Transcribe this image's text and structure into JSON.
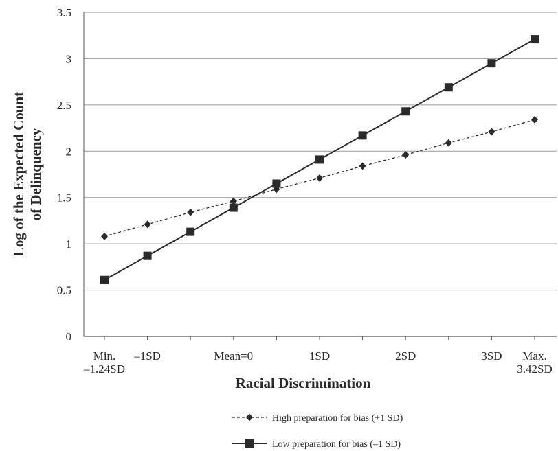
{
  "chart_data": {
    "type": "line",
    "title": "",
    "xlabel": "Racial Discrimination",
    "ylabel": "Log of the Expected Count of Delinquency",
    "ylabel_lines": [
      "Log of the Expected Count",
      "of Delinquency"
    ],
    "ylim": [
      0,
      3.5
    ],
    "yticks": [
      "0",
      "0.5",
      "1",
      "1.5",
      "2",
      "2.5",
      "3",
      "3.5"
    ],
    "grid": true,
    "legend_position": "bottom",
    "x_tick_labels": [
      {
        "idx": 0,
        "lines": [
          "Min.",
          "–1.24SD"
        ]
      },
      {
        "idx": 1,
        "lines": [
          "–1SD"
        ]
      },
      {
        "idx": 3,
        "lines": [
          "Mean=0"
        ]
      },
      {
        "idx": 5,
        "lines": [
          "1SD"
        ]
      },
      {
        "idx": 7,
        "lines": [
          "2SD"
        ]
      },
      {
        "idx": 9,
        "lines": [
          "3SD"
        ]
      },
      {
        "idx": 10,
        "lines": [
          "Max.",
          "3.42SD"
        ]
      }
    ],
    "x_count": 11,
    "series": [
      {
        "name": "High preparation for bias (+1 SD)",
        "marker": "diamond",
        "dash": true,
        "values": [
          1.08,
          1.21,
          1.34,
          1.46,
          1.59,
          1.71,
          1.84,
          1.96,
          2.09,
          2.21,
          2.34
        ]
      },
      {
        "name": "Low preparation for bias (–1 SD)",
        "marker": "square",
        "dash": false,
        "values": [
          0.61,
          0.87,
          1.13,
          1.39,
          1.65,
          1.91,
          2.17,
          2.43,
          2.69,
          2.95,
          3.21
        ]
      }
    ],
    "colors": {
      "line": "#2a2a2a",
      "grid": "#9a9a9a",
      "axis": "#555555"
    }
  }
}
